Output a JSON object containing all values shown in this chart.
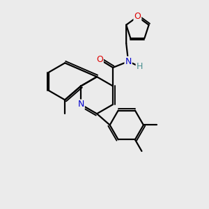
{
  "bg_color": "#ebebeb",
  "bond_color": "#000000",
  "bond_width": 1.6,
  "atom_colors": {
    "O": "#dd0000",
    "N": "#0000cc",
    "H": "#4a9090",
    "C": "#000000"
  },
  "font_size": 8.5
}
